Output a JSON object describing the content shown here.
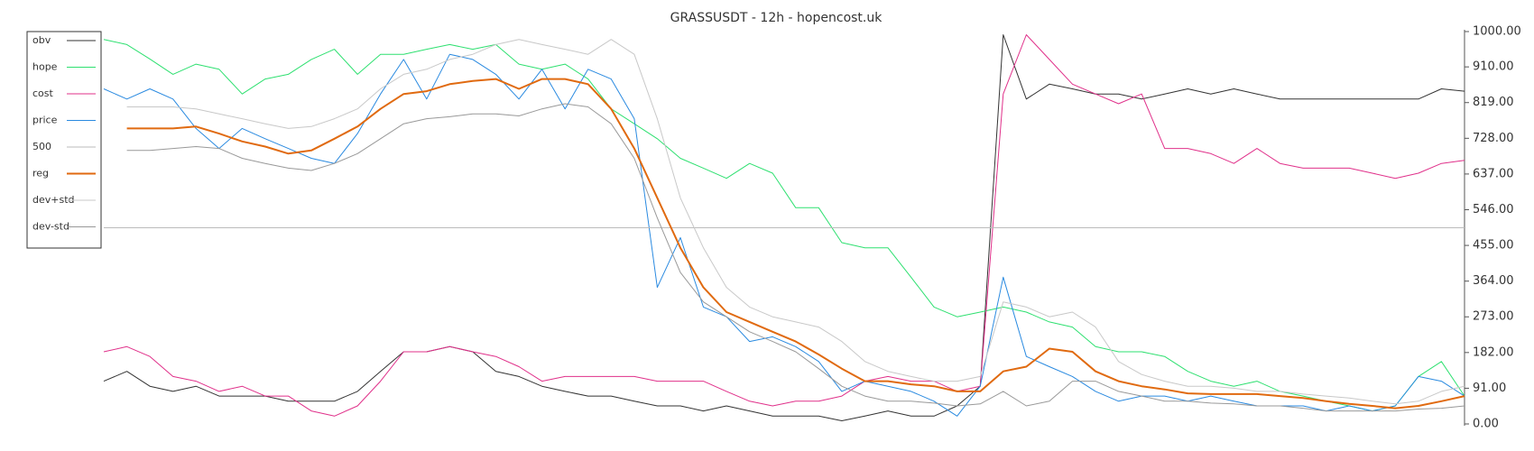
{
  "chart_data": {
    "type": "line",
    "title": "GRASSUSDT - 12h - hopencost.uk",
    "ylim": [
      0,
      1000
    ],
    "yticks": [
      {
        "value": 0,
        "label": "0.00"
      },
      {
        "value": 91,
        "label": "91.00"
      },
      {
        "value": 182,
        "label": "182.00"
      },
      {
        "value": 273,
        "label": "273.00"
      },
      {
        "value": 364,
        "label": "364.00"
      },
      {
        "value": 455,
        "label": "455.00"
      },
      {
        "value": 546,
        "label": "546.00"
      },
      {
        "value": 637,
        "label": "637.00"
      },
      {
        "value": 728,
        "label": "728.00"
      },
      {
        "value": 819,
        "label": "819.00"
      },
      {
        "value": 910,
        "label": "910.00"
      },
      {
        "value": 1000,
        "label": "1000.00"
      }
    ],
    "legend": "top-left",
    "series": [
      {
        "name": "obv",
        "color": "#333333",
        "width": 1,
        "values": [
          109,
          134,
          96,
          83,
          96,
          71,
          71,
          71,
          58,
          58,
          58,
          83,
          134,
          184,
          184,
          197,
          184,
          134,
          121,
          96,
          83,
          71,
          71,
          58,
          46,
          46,
          33,
          46,
          33,
          20,
          20,
          20,
          8,
          20,
          33,
          20,
          20,
          46,
          96,
          992,
          828,
          866,
          854,
          841,
          841,
          828,
          841,
          854,
          841,
          854,
          841,
          828,
          828,
          828,
          828,
          828,
          828,
          828,
          854,
          848
        ]
      },
      {
        "name": "hope",
        "color": "#2ee070",
        "width": 1,
        "values": [
          980,
          967,
          930,
          891,
          917,
          904,
          841,
          879,
          891,
          929,
          955,
          891,
          942,
          942,
          955,
          967,
          955,
          967,
          917,
          904,
          917,
          879,
          803,
          765,
          727,
          677,
          652,
          626,
          664,
          639,
          551,
          551,
          462,
          449,
          449,
          374,
          298,
          273,
          285,
          298,
          285,
          260,
          247,
          197,
          184,
          184,
          172,
          134,
          109,
          96,
          109,
          83,
          71,
          58,
          46,
          33,
          46,
          121,
          159,
          71
        ]
      },
      {
        "name": "cost",
        "color": "#e0308a",
        "width": 1,
        "values": [
          184,
          197,
          172,
          121,
          109,
          83,
          96,
          71,
          71,
          33,
          20,
          46,
          109,
          184,
          184,
          197,
          184,
          172,
          146,
          109,
          121,
          121,
          121,
          121,
          109,
          109,
          109,
          83,
          58,
          46,
          58,
          58,
          71,
          109,
          121,
          109,
          109,
          83,
          96,
          841,
          992,
          929,
          866,
          841,
          816,
          841,
          702,
          702,
          689,
          664,
          702,
          664,
          652,
          652,
          652,
          639,
          626,
          639,
          664,
          672
        ]
      },
      {
        "name": "price",
        "color": "#2a8ae0",
        "width": 1,
        "values": [
          854,
          828,
          854,
          828,
          753,
          702,
          753,
          727,
          702,
          677,
          664,
          740,
          841,
          929,
          828,
          942,
          929,
          891,
          828,
          904,
          803,
          904,
          879,
          778,
          348,
          475,
          298,
          273,
          210,
          222,
          197,
          159,
          83,
          109,
          96,
          83,
          58,
          20,
          96,
          374,
          172,
          146,
          121,
          83,
          58,
          71,
          71,
          58,
          71,
          58,
          46,
          46,
          46,
          33,
          46,
          33,
          46,
          121,
          109,
          71
        ]
      },
      {
        "name": "500",
        "color": "#bbbbbb",
        "width": 1,
        "values": [
          500,
          500,
          500,
          500,
          500,
          500,
          500,
          500,
          500,
          500,
          500,
          500,
          500,
          500,
          500,
          500,
          500,
          500,
          500,
          500,
          500,
          500,
          500,
          500,
          500,
          500,
          500,
          500,
          500,
          500,
          500,
          500,
          500,
          500,
          500,
          500,
          500,
          500,
          500,
          500,
          500,
          500,
          500,
          500,
          500,
          500,
          500,
          500,
          500,
          500,
          500,
          500,
          500,
          500,
          500,
          500,
          500,
          500,
          500,
          500
        ]
      },
      {
        "name": "reg",
        "color": "#e06a10",
        "width": 2,
        "values": [
          null,
          753,
          753,
          753,
          758,
          740,
          720,
          707,
          689,
          697,
          727,
          758,
          803,
          841,
          848,
          866,
          874,
          879,
          854,
          879,
          879,
          866,
          803,
          702,
          576,
          449,
          348,
          285,
          260,
          235,
          210,
          177,
          141,
          109,
          109,
          101,
          96,
          83,
          83,
          134,
          146,
          192,
          184,
          134,
          109,
          96,
          88,
          78,
          76,
          76,
          76,
          71,
          66,
          58,
          51,
          46,
          40,
          46,
          58,
          71
        ]
      },
      {
        "name": "dev+std",
        "color": "#c8c8c8",
        "width": 1,
        "values": [
          null,
          808,
          808,
          808,
          803,
          790,
          778,
          765,
          753,
          758,
          778,
          803,
          854,
          891,
          904,
          929,
          942,
          967,
          980,
          967,
          955,
          942,
          980,
          942,
          778,
          576,
          449,
          348,
          298,
          273,
          260,
          247,
          210,
          159,
          134,
          121,
          109,
          109,
          121,
          311,
          298,
          273,
          285,
          247,
          159,
          126,
          109,
          96,
          96,
          91,
          83,
          83,
          76,
          71,
          66,
          58,
          51,
          58,
          83,
          96
        ]
      },
      {
        "name": "dev-std",
        "color": "#999999",
        "width": 1,
        "values": [
          null,
          697,
          697,
          702,
          707,
          702,
          677,
          664,
          652,
          646,
          664,
          689,
          727,
          765,
          778,
          783,
          790,
          790,
          785,
          803,
          816,
          808,
          765,
          677,
          525,
          386,
          311,
          273,
          235,
          210,
          184,
          141,
          96,
          71,
          58,
          58,
          53,
          46,
          51,
          83,
          46,
          58,
          109,
          109,
          83,
          71,
          58,
          58,
          53,
          51,
          46,
          46,
          40,
          33,
          33,
          33,
          33,
          38,
          40,
          46
        ]
      }
    ]
  }
}
